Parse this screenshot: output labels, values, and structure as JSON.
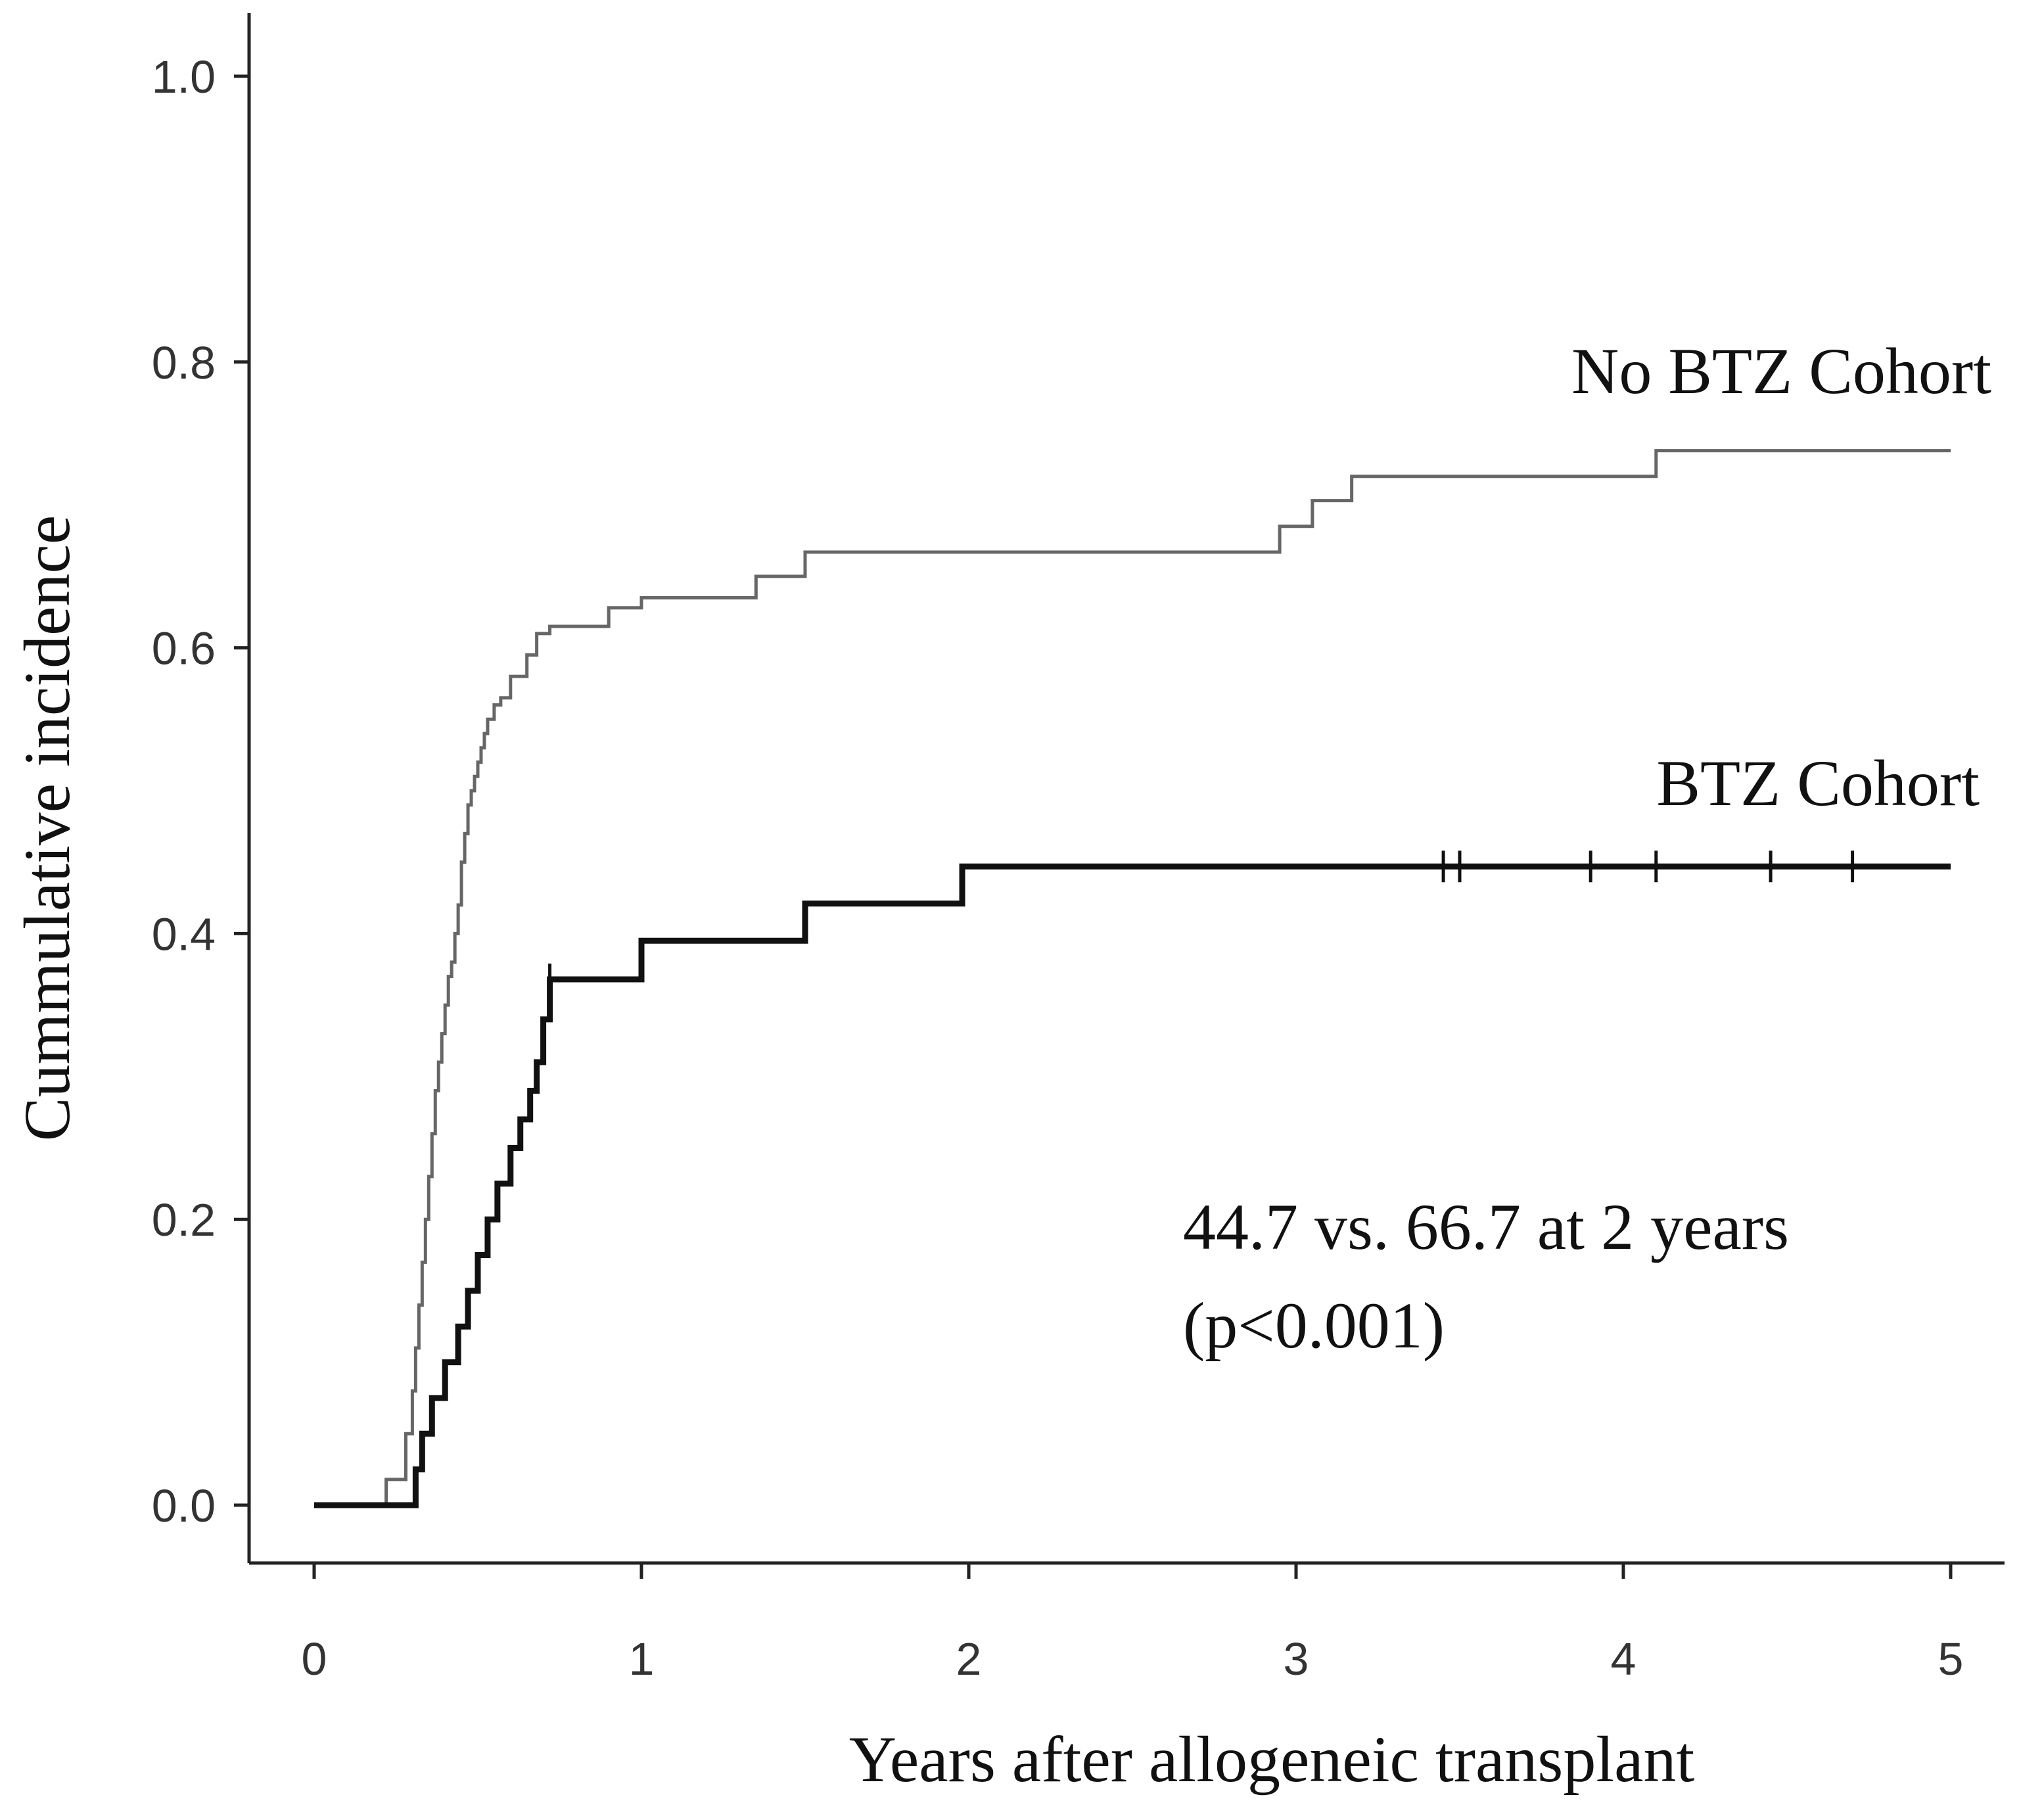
{
  "chart_data": {
    "type": "line",
    "subtype": "step (cumulative incidence)",
    "xlabel": "Years after allogeneic transplant",
    "ylabel": "Cummulative incidence",
    "xlim": [
      0,
      5
    ],
    "ylim": [
      0,
      1.0
    ],
    "x_ticks": [
      "0",
      "1",
      "2",
      "3",
      "4",
      "5"
    ],
    "y_ticks": [
      "0.0",
      "0.2",
      "0.4",
      "0.6",
      "0.8",
      "1.0"
    ],
    "x_tick_values": [
      0,
      1,
      2,
      3,
      4,
      5
    ],
    "y_tick_values": [
      0,
      0.2,
      0.4,
      0.6,
      0.8,
      1.0
    ],
    "grid": false,
    "annotation": {
      "line1": "44.7 vs. 66.7 at 2 years",
      "line2": "(p<0.001)"
    },
    "series": [
      {
        "name": "No BTZ Cohort",
        "color": "#666666",
        "style": "thin",
        "x": [
          0,
          0.22,
          0.28,
          0.3,
          0.31,
          0.32,
          0.33,
          0.34,
          0.35,
          0.36,
          0.37,
          0.38,
          0.39,
          0.4,
          0.41,
          0.42,
          0.43,
          0.44,
          0.45,
          0.46,
          0.47,
          0.48,
          0.49,
          0.5,
          0.51,
          0.52,
          0.53,
          0.55,
          0.57,
          0.6,
          0.65,
          0.68,
          0.72,
          0.9,
          1.0,
          1.35,
          1.5,
          2.0,
          2.95,
          3.05,
          3.17,
          4.1,
          5.0
        ],
        "y": [
          0,
          0.018,
          0.05,
          0.08,
          0.11,
          0.14,
          0.17,
          0.2,
          0.23,
          0.26,
          0.29,
          0.31,
          0.33,
          0.35,
          0.37,
          0.38,
          0.4,
          0.42,
          0.45,
          0.47,
          0.49,
          0.5,
          0.51,
          0.52,
          0.53,
          0.54,
          0.55,
          0.56,
          0.565,
          0.58,
          0.595,
          0.61,
          0.615,
          0.628,
          0.635,
          0.65,
          0.667,
          0.667,
          0.685,
          0.703,
          0.72,
          0.738,
          0.738
        ]
      },
      {
        "name": "BTZ Cohort",
        "color": "#111111",
        "style": "thick",
        "x": [
          0,
          0.31,
          0.33,
          0.36,
          0.4,
          0.44,
          0.47,
          0.5,
          0.53,
          0.56,
          0.6,
          0.63,
          0.66,
          0.68,
          0.7,
          0.72,
          1.0,
          1.5,
          1.98,
          5.0
        ],
        "y": [
          0,
          0.025,
          0.05,
          0.075,
          0.1,
          0.125,
          0.15,
          0.175,
          0.2,
          0.225,
          0.25,
          0.27,
          0.29,
          0.31,
          0.34,
          0.368,
          0.395,
          0.421,
          0.447,
          0.447
        ],
        "censor_x": [
          0.72,
          3.45,
          3.5,
          3.9,
          4.1,
          4.45,
          4.7
        ],
        "censor_y": [
          0.368,
          0.447,
          0.447,
          0.447,
          0.447,
          0.447,
          0.447
        ]
      }
    ]
  }
}
